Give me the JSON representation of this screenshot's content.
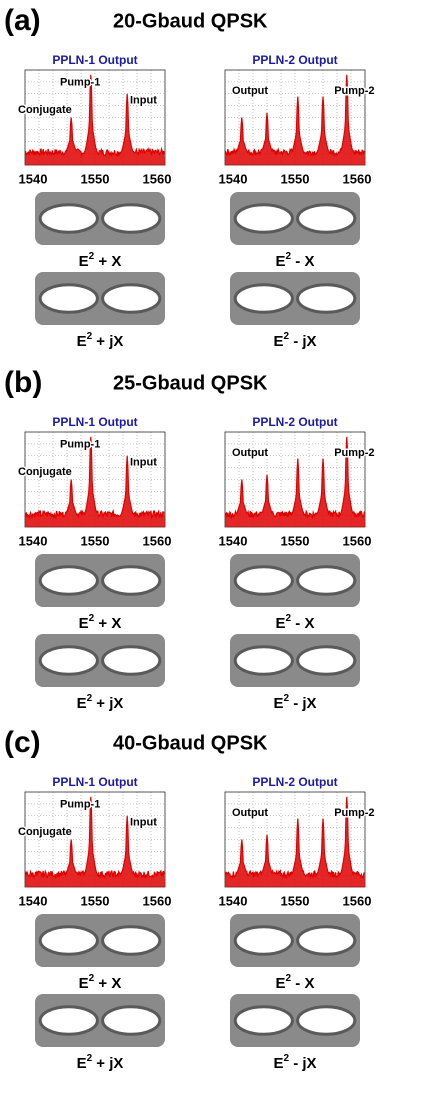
{
  "panels": [
    {
      "label": "(a)",
      "title": "20-Gbaud QPSK",
      "spectra": [
        {
          "title": "PPLN-1 Output",
          "annotations": [
            "Pump-1",
            "Input",
            "Conjugate"
          ],
          "xticks": [
            "1540",
            "1550",
            "1560"
          ]
        },
        {
          "title": "PPLN-2 Output",
          "annotations": [
            "Output",
            "Pump-2"
          ],
          "xticks": [
            "1540",
            "1550",
            "1560"
          ]
        }
      ],
      "eyes": [
        [
          {
            "base": "E",
            "sup": "2",
            "rest": " + X"
          },
          {
            "base": "E",
            "sup": "2",
            "rest": " + jX"
          }
        ],
        [
          {
            "base": "E",
            "sup": "2",
            "rest": " - X"
          },
          {
            "base": "E",
            "sup": "2",
            "rest": " - jX"
          }
        ]
      ]
    },
    {
      "label": "(b)",
      "title": "25-Gbaud QPSK",
      "spectra": [
        {
          "title": "PPLN-1 Output",
          "annotations": [
            "Pump-1",
            "Input",
            "Conjugate"
          ],
          "xticks": [
            "1540",
            "1550",
            "1560"
          ]
        },
        {
          "title": "PPLN-2 Output",
          "annotations": [
            "Output",
            "Pump-2"
          ],
          "xticks": [
            "1540",
            "1550",
            "1560"
          ]
        }
      ],
      "eyes": [
        [
          {
            "base": "E",
            "sup": "2",
            "rest": " + X"
          },
          {
            "base": "E",
            "sup": "2",
            "rest": " + jX"
          }
        ],
        [
          {
            "base": "E",
            "sup": "2",
            "rest": " - X"
          },
          {
            "base": "E",
            "sup": "2",
            "rest": " - jX"
          }
        ]
      ]
    },
    {
      "label": "(c)",
      "title": "40-Gbaud QPSK",
      "spectra": [
        {
          "title": "PPLN-1 Output",
          "annotations": [
            "Pump-1",
            "Input",
            "Conjugate"
          ],
          "xticks": [
            "1540",
            "1550",
            "1560"
          ]
        },
        {
          "title": "PPLN-2 Output",
          "annotations": [
            "Output",
            "Pump-2"
          ],
          "xticks": [
            "1540",
            "1550",
            "1560"
          ]
        }
      ],
      "eyes": [
        [
          {
            "base": "E",
            "sup": "2",
            "rest": " + X"
          },
          {
            "base": "E",
            "sup": "2",
            "rest": " + jX"
          }
        ],
        [
          {
            "base": "E",
            "sup": "2",
            "rest": " - X"
          },
          {
            "base": "E",
            "sup": "2",
            "rest": " - jX"
          }
        ]
      ]
    }
  ]
}
